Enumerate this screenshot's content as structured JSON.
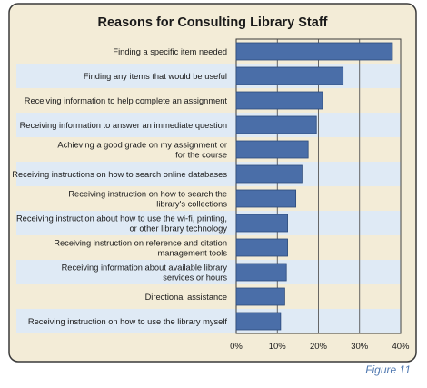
{
  "chart_data": {
    "type": "bar",
    "orientation": "horizontal",
    "title": "Reasons for Consulting Library Staff",
    "categories": [
      [
        "Finding a specific item needed"
      ],
      [
        "Finding any items that would be useful"
      ],
      [
        "Receiving information to help complete an assignment"
      ],
      [
        "Receiving information to answer an immediate question"
      ],
      [
        "Achieving a good grade on my assignment or",
        "for the course"
      ],
      [
        "Receiving instructions on how to search online databases"
      ],
      [
        "Receiving instruction on how to search the",
        "library's collections"
      ],
      [
        "Receiving instruction about how to use the wi-fi, printing,",
        "or other library technology"
      ],
      [
        "Receiving instruction on reference and citation",
        "management tools"
      ],
      [
        "Receiving information about available library",
        "services or hours"
      ],
      [
        "Directional assistance"
      ],
      [
        "Receiving instruction on how to use the library myself"
      ]
    ],
    "values": [
      38,
      26,
      21,
      19.5,
      17.5,
      16,
      14.5,
      12.5,
      12.5,
      12.2,
      11.8,
      10.8
    ],
    "xlim": [
      0,
      40
    ],
    "xticks": [
      0,
      10,
      20,
      30,
      40
    ],
    "tick_format": "{v}%",
    "grid": true,
    "legend": "none",
    "caption": "Figure 11",
    "colors": {
      "bar_fill": "#4a6ea8",
      "bar_stroke": "#2c4a7a",
      "panel_bg": "#f3ecd7",
      "band_light": "#dfeaf5",
      "frame": "#3a3a3a",
      "gridline": "#444444",
      "caption": "#4f78b0"
    }
  }
}
